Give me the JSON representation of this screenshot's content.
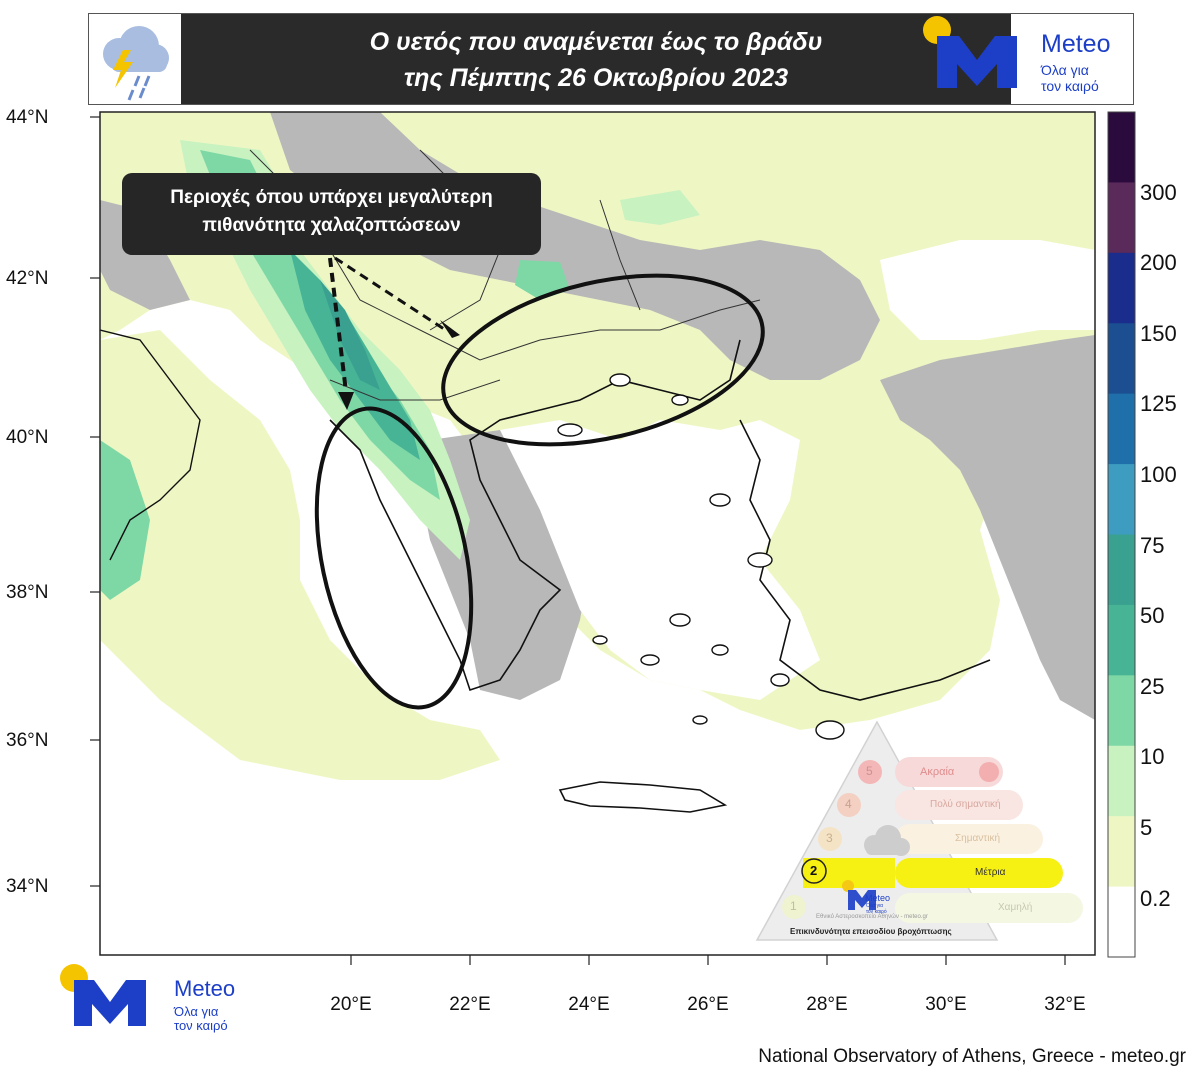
{
  "header": {
    "title_line1": "Ο υετός που αναμένεται έως το βράδυ",
    "title_line2": "της Πέμπτης 26 Οκτωβρίου 2023",
    "left_icon": "thunderstorm-rain-icon"
  },
  "logo": {
    "name": "Meteo",
    "tagline_line1": "Όλα για",
    "tagline_line2": "τον καιρό"
  },
  "callout": {
    "line1": "Περιοχές όπου υπάρχει μεγαλύτερη",
    "line2": "πιθανότητα χαλαζοπτώσεων"
  },
  "axes": {
    "lat_labels": [
      "44°N",
      "42°N",
      "40°N",
      "38°N",
      "36°N",
      "34°N"
    ],
    "lon_labels": [
      "20°E",
      "22°E",
      "24°E",
      "26°E",
      "28°E",
      "30°E",
      "32°E"
    ]
  },
  "colorbar": {
    "labels": [
      "300",
      "200",
      "150",
      "125",
      "100",
      "75",
      "50",
      "25",
      "10",
      "5",
      "0.2"
    ],
    "colors": [
      "#2b0a3d",
      "#5a2a5a",
      "#1a2d8c",
      "#1b4f92",
      "#1f6faa",
      "#3d9cc0",
      "#3aa090",
      "#48b496",
      "#7ed8a6",
      "#c8f2c0",
      "#eef7c4",
      "#ffffff"
    ]
  },
  "risk_scale": {
    "levels": [
      {
        "num": "5",
        "label": "Ακραία"
      },
      {
        "num": "4",
        "label": "Πολύ σημαντική"
      },
      {
        "num": "3",
        "label": "Σημαντική"
      },
      {
        "num": "2",
        "label": "Μέτρια"
      },
      {
        "num": "1",
        "label": "Χαμηλή"
      }
    ],
    "active_level": 2,
    "caption": "Επικινδυνότητα επεισοδίου βροχόπτωσης",
    "small_text": "Εθνικό Αστεροσκοπείο Αθηνών - meteo.gr"
  },
  "credit": "National Observatory of Athens, Greece - meteo.gr"
}
